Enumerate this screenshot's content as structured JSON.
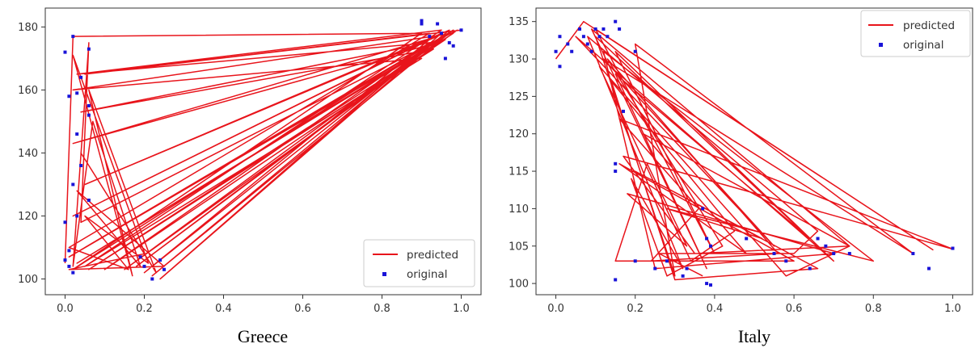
{
  "colors": {
    "predicted": "#e8141b",
    "original": "#1a14d8",
    "axis": "#333333",
    "legend_border": "#cccccc"
  },
  "chart_data": [
    {
      "type": "line",
      "caption": "Greece",
      "xlim": [
        -0.05,
        1.05
      ],
      "ylim": [
        95,
        186
      ],
      "x_ticks": [
        0.0,
        0.2,
        0.4,
        0.6,
        0.8,
        1.0
      ],
      "x_tick_labels": [
        "0.0",
        "0.2",
        "0.4",
        "0.6",
        "0.8",
        "1.0"
      ],
      "y_ticks": [
        100,
        120,
        140,
        160,
        180
      ],
      "y_tick_labels": [
        "100",
        "120",
        "140",
        "160",
        "180"
      ],
      "grid": false,
      "legend": {
        "placement": "lower-right",
        "entries": [
          "predicted",
          "original"
        ]
      },
      "series": [
        {
          "name": "predicted",
          "kind": "line",
          "points": [
            [
              0.0,
              105
            ],
            [
              0.02,
              177
            ],
            [
              0.9,
              178
            ],
            [
              0.02,
              103
            ],
            [
              0.92,
              175
            ],
            [
              0.03,
              165
            ],
            [
              0.95,
              179
            ],
            [
              0.05,
              104
            ],
            [
              0.9,
              170
            ],
            [
              0.02,
              160
            ],
            [
              0.98,
              178
            ],
            [
              0.06,
              103
            ],
            [
              0.93,
              173
            ],
            [
              0.04,
              153
            ],
            [
              0.96,
              176
            ],
            [
              0.1,
              103
            ],
            [
              0.91,
              174
            ],
            [
              0.02,
              143
            ],
            [
              0.94,
              177
            ],
            [
              0.05,
              130
            ],
            [
              0.97,
              179
            ],
            [
              0.2,
              102
            ],
            [
              0.92,
              176
            ],
            [
              0.02,
              120
            ],
            [
              0.95,
              178
            ],
            [
              0.24,
              100
            ],
            [
              0.93,
              175
            ],
            [
              0.05,
              110
            ],
            [
              0.98,
              179
            ],
            [
              0.18,
              104
            ],
            [
              0.9,
              172
            ],
            [
              0.03,
              105
            ],
            [
              0.96,
              177
            ],
            [
              0.22,
              101
            ],
            [
              0.91,
              173
            ],
            [
              0.01,
              107
            ],
            [
              0.94,
              176
            ],
            [
              0.15,
              103
            ],
            [
              0.99,
              179
            ],
            [
              0.04,
              118
            ],
            [
              0.06,
              175
            ],
            [
              0.02,
              104
            ],
            [
              0.07,
              150
            ],
            [
              0.19,
              104
            ],
            [
              0.03,
              128
            ],
            [
              0.25,
              104
            ],
            [
              0.01,
              103
            ],
            [
              0.2,
              108
            ],
            [
              0.04,
              140
            ],
            [
              0.23,
              102
            ],
            [
              0.06,
              160
            ],
            [
              0.17,
              101
            ],
            [
              0.02,
              171
            ],
            [
              0.21,
              105
            ],
            [
              0.05,
              120
            ],
            [
              0.16,
              103
            ],
            [
              0.01,
              110
            ],
            [
              0.92,
              178
            ],
            [
              0.05,
              165
            ],
            [
              1.0,
              179
            ]
          ]
        },
        {
          "name": "original",
          "kind": "scatter",
          "points": [
            [
              0.0,
              172
            ],
            [
              0.02,
              177
            ],
            [
              0.06,
              173
            ],
            [
              0.04,
              164
            ],
            [
              0.03,
              159
            ],
            [
              0.01,
              158
            ],
            [
              0.06,
              155
            ],
            [
              0.06,
              152
            ],
            [
              0.03,
              146
            ],
            [
              0.04,
              136
            ],
            [
              0.02,
              130
            ],
            [
              0.06,
              125
            ],
            [
              0.03,
              120
            ],
            [
              0.0,
              118
            ],
            [
              0.01,
              109
            ],
            [
              0.0,
              106
            ],
            [
              0.01,
              104
            ],
            [
              0.02,
              102
            ],
            [
              0.19,
              107
            ],
            [
              0.2,
              104
            ],
            [
              0.24,
              106
            ],
            [
              0.22,
              100
            ],
            [
              0.25,
              103
            ],
            [
              0.9,
              182
            ],
            [
              0.9,
              181
            ],
            [
              0.94,
              181
            ],
            [
              0.92,
              177
            ],
            [
              0.95,
              178
            ],
            [
              0.97,
              175
            ],
            [
              0.98,
              174
            ],
            [
              0.96,
              170
            ],
            [
              1.0,
              179
            ]
          ]
        }
      ]
    },
    {
      "type": "line",
      "caption": "Italy",
      "xlim": [
        -0.05,
        1.05
      ],
      "ylim": [
        98.5,
        136.8
      ],
      "x_ticks": [
        0.0,
        0.2,
        0.4,
        0.6,
        0.8,
        1.0
      ],
      "x_tick_labels": [
        "0.0",
        "0.2",
        "0.4",
        "0.6",
        "0.8",
        "1.0"
      ],
      "y_ticks": [
        100,
        105,
        110,
        115,
        120,
        125,
        130,
        135
      ],
      "y_tick_labels": [
        "100",
        "105",
        "110",
        "115",
        "120",
        "125",
        "130",
        "135"
      ],
      "grid": false,
      "legend": {
        "placement": "upper-right",
        "entries": [
          "predicted",
          "original"
        ]
      },
      "series": [
        {
          "name": "predicted",
          "kind": "line",
          "points": [
            [
              0.0,
              130
            ],
            [
              0.07,
              135
            ],
            [
              0.95,
              104.5
            ],
            [
              0.1,
              134
            ],
            [
              0.4,
              104
            ],
            [
              0.15,
              131
            ],
            [
              0.7,
              103
            ],
            [
              0.05,
              133
            ],
            [
              0.55,
              105
            ],
            [
              0.12,
              130
            ],
            [
              0.9,
              104
            ],
            [
              0.2,
              132
            ],
            [
              0.3,
              101
            ],
            [
              0.1,
              133
            ],
            [
              0.64,
              106
            ],
            [
              0.15,
              128
            ],
            [
              0.38,
              102
            ],
            [
              0.09,
              134
            ],
            [
              0.74,
              105
            ],
            [
              0.22,
              120
            ],
            [
              0.48,
              104
            ],
            [
              0.16,
              116
            ],
            [
              0.6,
              103
            ],
            [
              0.15,
              103
            ],
            [
              0.23,
              116
            ],
            [
              0.33,
              105
            ],
            [
              0.18,
              112
            ],
            [
              0.7,
              104
            ],
            [
              0.25,
              102
            ],
            [
              0.12,
              131
            ],
            [
              0.8,
              103
            ],
            [
              0.28,
              110
            ],
            [
              0.52,
              106
            ],
            [
              0.2,
              115
            ],
            [
              0.66,
              102
            ],
            [
              0.3,
              100.5
            ],
            [
              0.14,
              127
            ],
            [
              0.45,
              107
            ],
            [
              0.34,
              103
            ],
            [
              0.11,
              129
            ],
            [
              0.58,
              101
            ],
            [
              0.74,
              105
            ],
            [
              0.35,
              104
            ],
            [
              0.17,
              117
            ],
            [
              1.0,
              104.6
            ],
            [
              0.16,
              122
            ],
            [
              0.36,
              110
            ],
            [
              0.24,
              103
            ],
            [
              0.56,
              104
            ],
            [
              0.13,
              130
            ],
            [
              0.42,
              105
            ],
            [
              0.28,
              101
            ],
            [
              0.19,
              114
            ],
            [
              0.32,
              102
            ],
            [
              0.08,
              133
            ],
            [
              0.66,
              107
            ],
            [
              0.6,
              104
            ],
            [
              0.26,
              104
            ],
            [
              0.37,
              101
            ]
          ]
        },
        {
          "name": "original",
          "kind": "scatter",
          "points": [
            [
              0.0,
              131
            ],
            [
              0.01,
              129
            ],
            [
              0.01,
              133
            ],
            [
              0.03,
              132
            ],
            [
              0.04,
              131
            ],
            [
              0.06,
              134
            ],
            [
              0.07,
              133
            ],
            [
              0.08,
              132
            ],
            [
              0.09,
              131
            ],
            [
              0.1,
              134
            ],
            [
              0.11,
              133
            ],
            [
              0.12,
              134
            ],
            [
              0.13,
              133
            ],
            [
              0.15,
              135
            ],
            [
              0.16,
              134
            ],
            [
              0.2,
              131
            ],
            [
              0.15,
              116
            ],
            [
              0.15,
              115
            ],
            [
              0.17,
              123
            ],
            [
              0.2,
              103
            ],
            [
              0.15,
              100.5
            ],
            [
              0.25,
              102
            ],
            [
              0.28,
              103
            ],
            [
              0.32,
              101
            ],
            [
              0.33,
              102
            ],
            [
              0.37,
              110
            ],
            [
              0.38,
              106
            ],
            [
              0.39,
              105
            ],
            [
              0.38,
              100
            ],
            [
              0.39,
              99.8
            ],
            [
              0.48,
              106
            ],
            [
              0.55,
              104
            ],
            [
              0.58,
              103
            ],
            [
              0.64,
              102
            ],
            [
              0.66,
              106
            ],
            [
              0.68,
              105
            ],
            [
              0.7,
              104
            ],
            [
              0.74,
              104
            ],
            [
              0.9,
              104
            ],
            [
              0.94,
              102
            ],
            [
              1.0,
              104.7
            ]
          ]
        }
      ]
    }
  ]
}
